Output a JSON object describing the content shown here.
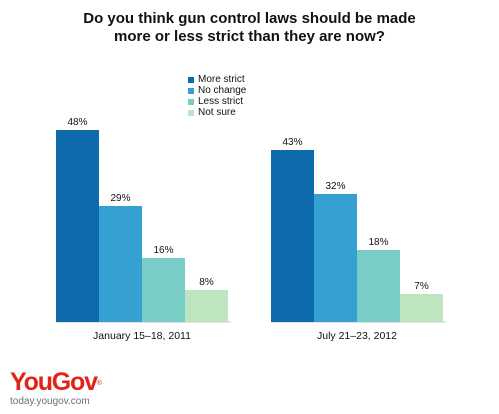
{
  "title_lines": [
    "Do you think gun control laws should be made",
    "more or less strict than they are now?"
  ],
  "chart_data": {
    "type": "bar",
    "title": "Do you think gun control laws should be made more or less strict than they are now?",
    "categories": [
      "January 15–18, 2011",
      "July 21–23, 2012"
    ],
    "series": [
      {
        "name": "More strict",
        "values": [
          48,
          43
        ],
        "labels": [
          "48%",
          "43%"
        ],
        "color": "#0d6aab"
      },
      {
        "name": "No change",
        "values": [
          29,
          32
        ],
        "labels": [
          "29%",
          "32%"
        ],
        "color": "#34a1d2"
      },
      {
        "name": "Less strict",
        "values": [
          16,
          18
        ],
        "labels": [
          "16%",
          "18%"
        ],
        "color": "#78cec6"
      },
      {
        "name": "Not sure",
        "values": [
          8,
          7
        ],
        "labels": [
          "8%",
          "7%"
        ],
        "color": "#bde5c0"
      }
    ],
    "unit": "%",
    "legend_position": "top-center",
    "grid": false
  },
  "brand": {
    "logo": "YouGov",
    "logo_mark": "®",
    "site": "today.yougov.com",
    "logo_color": "#e1231a"
  }
}
